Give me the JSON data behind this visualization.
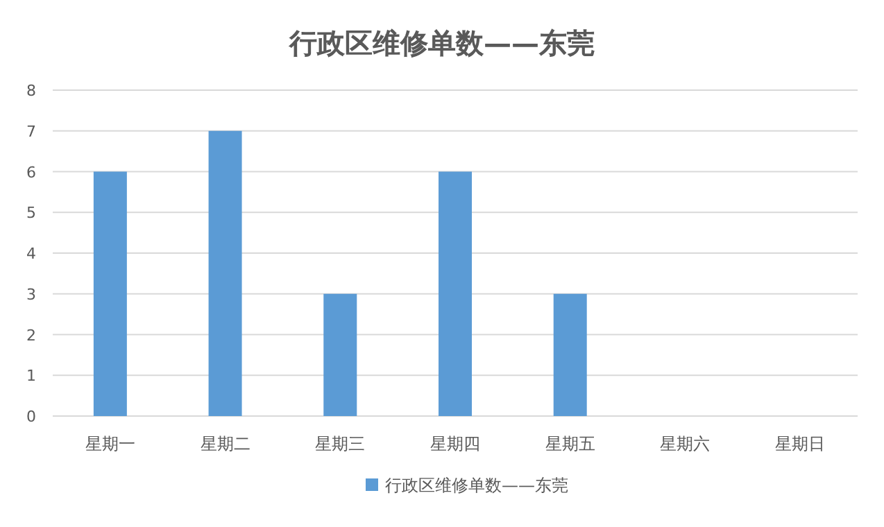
{
  "chart_data": {
    "type": "bar",
    "title": "行政区维修单数——东莞",
    "categories": [
      "星期一",
      "星期二",
      "星期三",
      "星期四",
      "星期五",
      "星期六",
      "星期日"
    ],
    "series": [
      {
        "name": "行政区维修单数——东莞",
        "color": "#5b9bd5",
        "values": [
          6,
          7,
          3,
          6,
          3,
          0,
          0
        ]
      }
    ],
    "ylim": [
      0,
      8
    ],
    "yticks": [
      0,
      1,
      2,
      3,
      4,
      5,
      6,
      7,
      8
    ],
    "grid": "y",
    "legend": "bottom"
  }
}
